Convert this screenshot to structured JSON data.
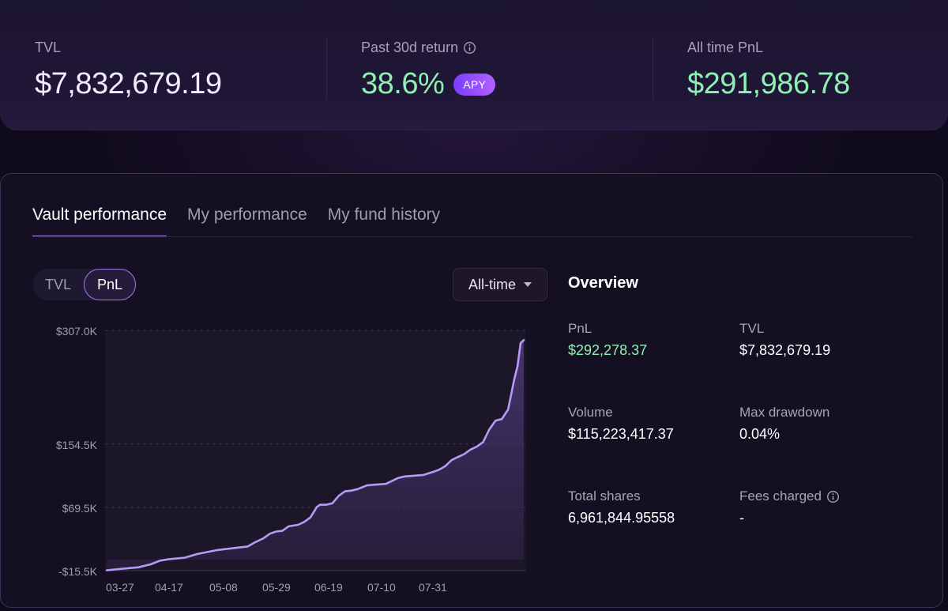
{
  "stats": {
    "tvl": {
      "label": "TVL",
      "value": "$7,832,679.19"
    },
    "return30d": {
      "label": "Past 30d return",
      "value": "38.6%",
      "badge": "APY"
    },
    "pnl": {
      "label": "All time PnL",
      "value": "$291,986.78"
    }
  },
  "tabs": [
    {
      "label": "Vault performance",
      "active": true
    },
    {
      "label": "My performance",
      "active": false
    },
    {
      "label": "My fund history",
      "active": false
    }
  ],
  "toggle": {
    "options": [
      "TVL",
      "PnL"
    ],
    "selected": "PnL"
  },
  "range": {
    "selected": "All-time"
  },
  "overview": {
    "title": "Overview",
    "items": [
      {
        "label": "PnL",
        "value": "$292,278.37"
      },
      {
        "label": "TVL",
        "value": "$7,832,679.19"
      },
      {
        "label": "Volume",
        "value": "$115,223,417.37"
      },
      {
        "label": "Max drawdown",
        "value": "0.04%"
      },
      {
        "label": "Total shares",
        "value": "6,961,844.95558"
      },
      {
        "label": "Fees charged",
        "value": "-"
      }
    ]
  },
  "colors": {
    "accent": "#a787f2",
    "positive": "#8ef0b2",
    "line": "#b79af5"
  },
  "chart_data": {
    "type": "area",
    "ylim": [
      -15.5,
      307.0
    ],
    "yunit": "K USD",
    "y_ticks": [
      {
        "value": 307.0,
        "label": "$307.0K"
      },
      {
        "value": 154.5,
        "label": "$154.5K"
      },
      {
        "value": 69.5,
        "label": "$69.5K"
      },
      {
        "value": -15.5,
        "label": "-$15.5K"
      }
    ],
    "x_ticks": [
      "03-27",
      "04-17",
      "05-08",
      "05-29",
      "06-19",
      "07-10",
      "07-31"
    ],
    "x_start": "03-26",
    "series": [
      {
        "values": [
          [
            0,
            -15
          ],
          [
            5,
            -13
          ],
          [
            10,
            -11
          ],
          [
            14,
            -7
          ],
          [
            17,
            -2
          ],
          [
            20,
            0
          ],
          [
            25,
            2
          ],
          [
            29,
            7
          ],
          [
            35,
            12
          ],
          [
            41,
            15
          ],
          [
            45,
            17
          ],
          [
            47,
            22
          ],
          [
            50,
            28
          ],
          [
            52,
            34
          ],
          [
            54,
            37
          ],
          [
            56,
            38
          ],
          [
            58,
            44
          ],
          [
            61,
            46
          ],
          [
            63,
            50
          ],
          [
            65,
            56
          ],
          [
            67,
            70
          ],
          [
            68,
            73
          ],
          [
            70,
            73
          ],
          [
            72,
            75
          ],
          [
            74,
            85
          ],
          [
            76,
            91
          ],
          [
            78,
            92
          ],
          [
            80,
            94
          ],
          [
            83,
            99
          ],
          [
            86,
            100
          ],
          [
            89,
            101
          ],
          [
            91,
            105
          ],
          [
            93,
            109
          ],
          [
            95,
            111
          ],
          [
            98,
            112
          ],
          [
            101,
            113
          ],
          [
            104,
            117
          ],
          [
            106,
            120
          ],
          [
            108,
            125
          ],
          [
            110,
            133
          ],
          [
            112,
            137
          ],
          [
            114,
            141
          ],
          [
            116,
            147
          ],
          [
            118,
            151
          ],
          [
            120,
            157
          ],
          [
            122,
            174
          ],
          [
            124,
            186
          ],
          [
            126,
            188
          ],
          [
            128,
            201
          ],
          [
            130,
            242
          ],
          [
            131,
            259
          ],
          [
            132,
            290
          ],
          [
            133,
            294
          ]
        ]
      }
    ]
  }
}
